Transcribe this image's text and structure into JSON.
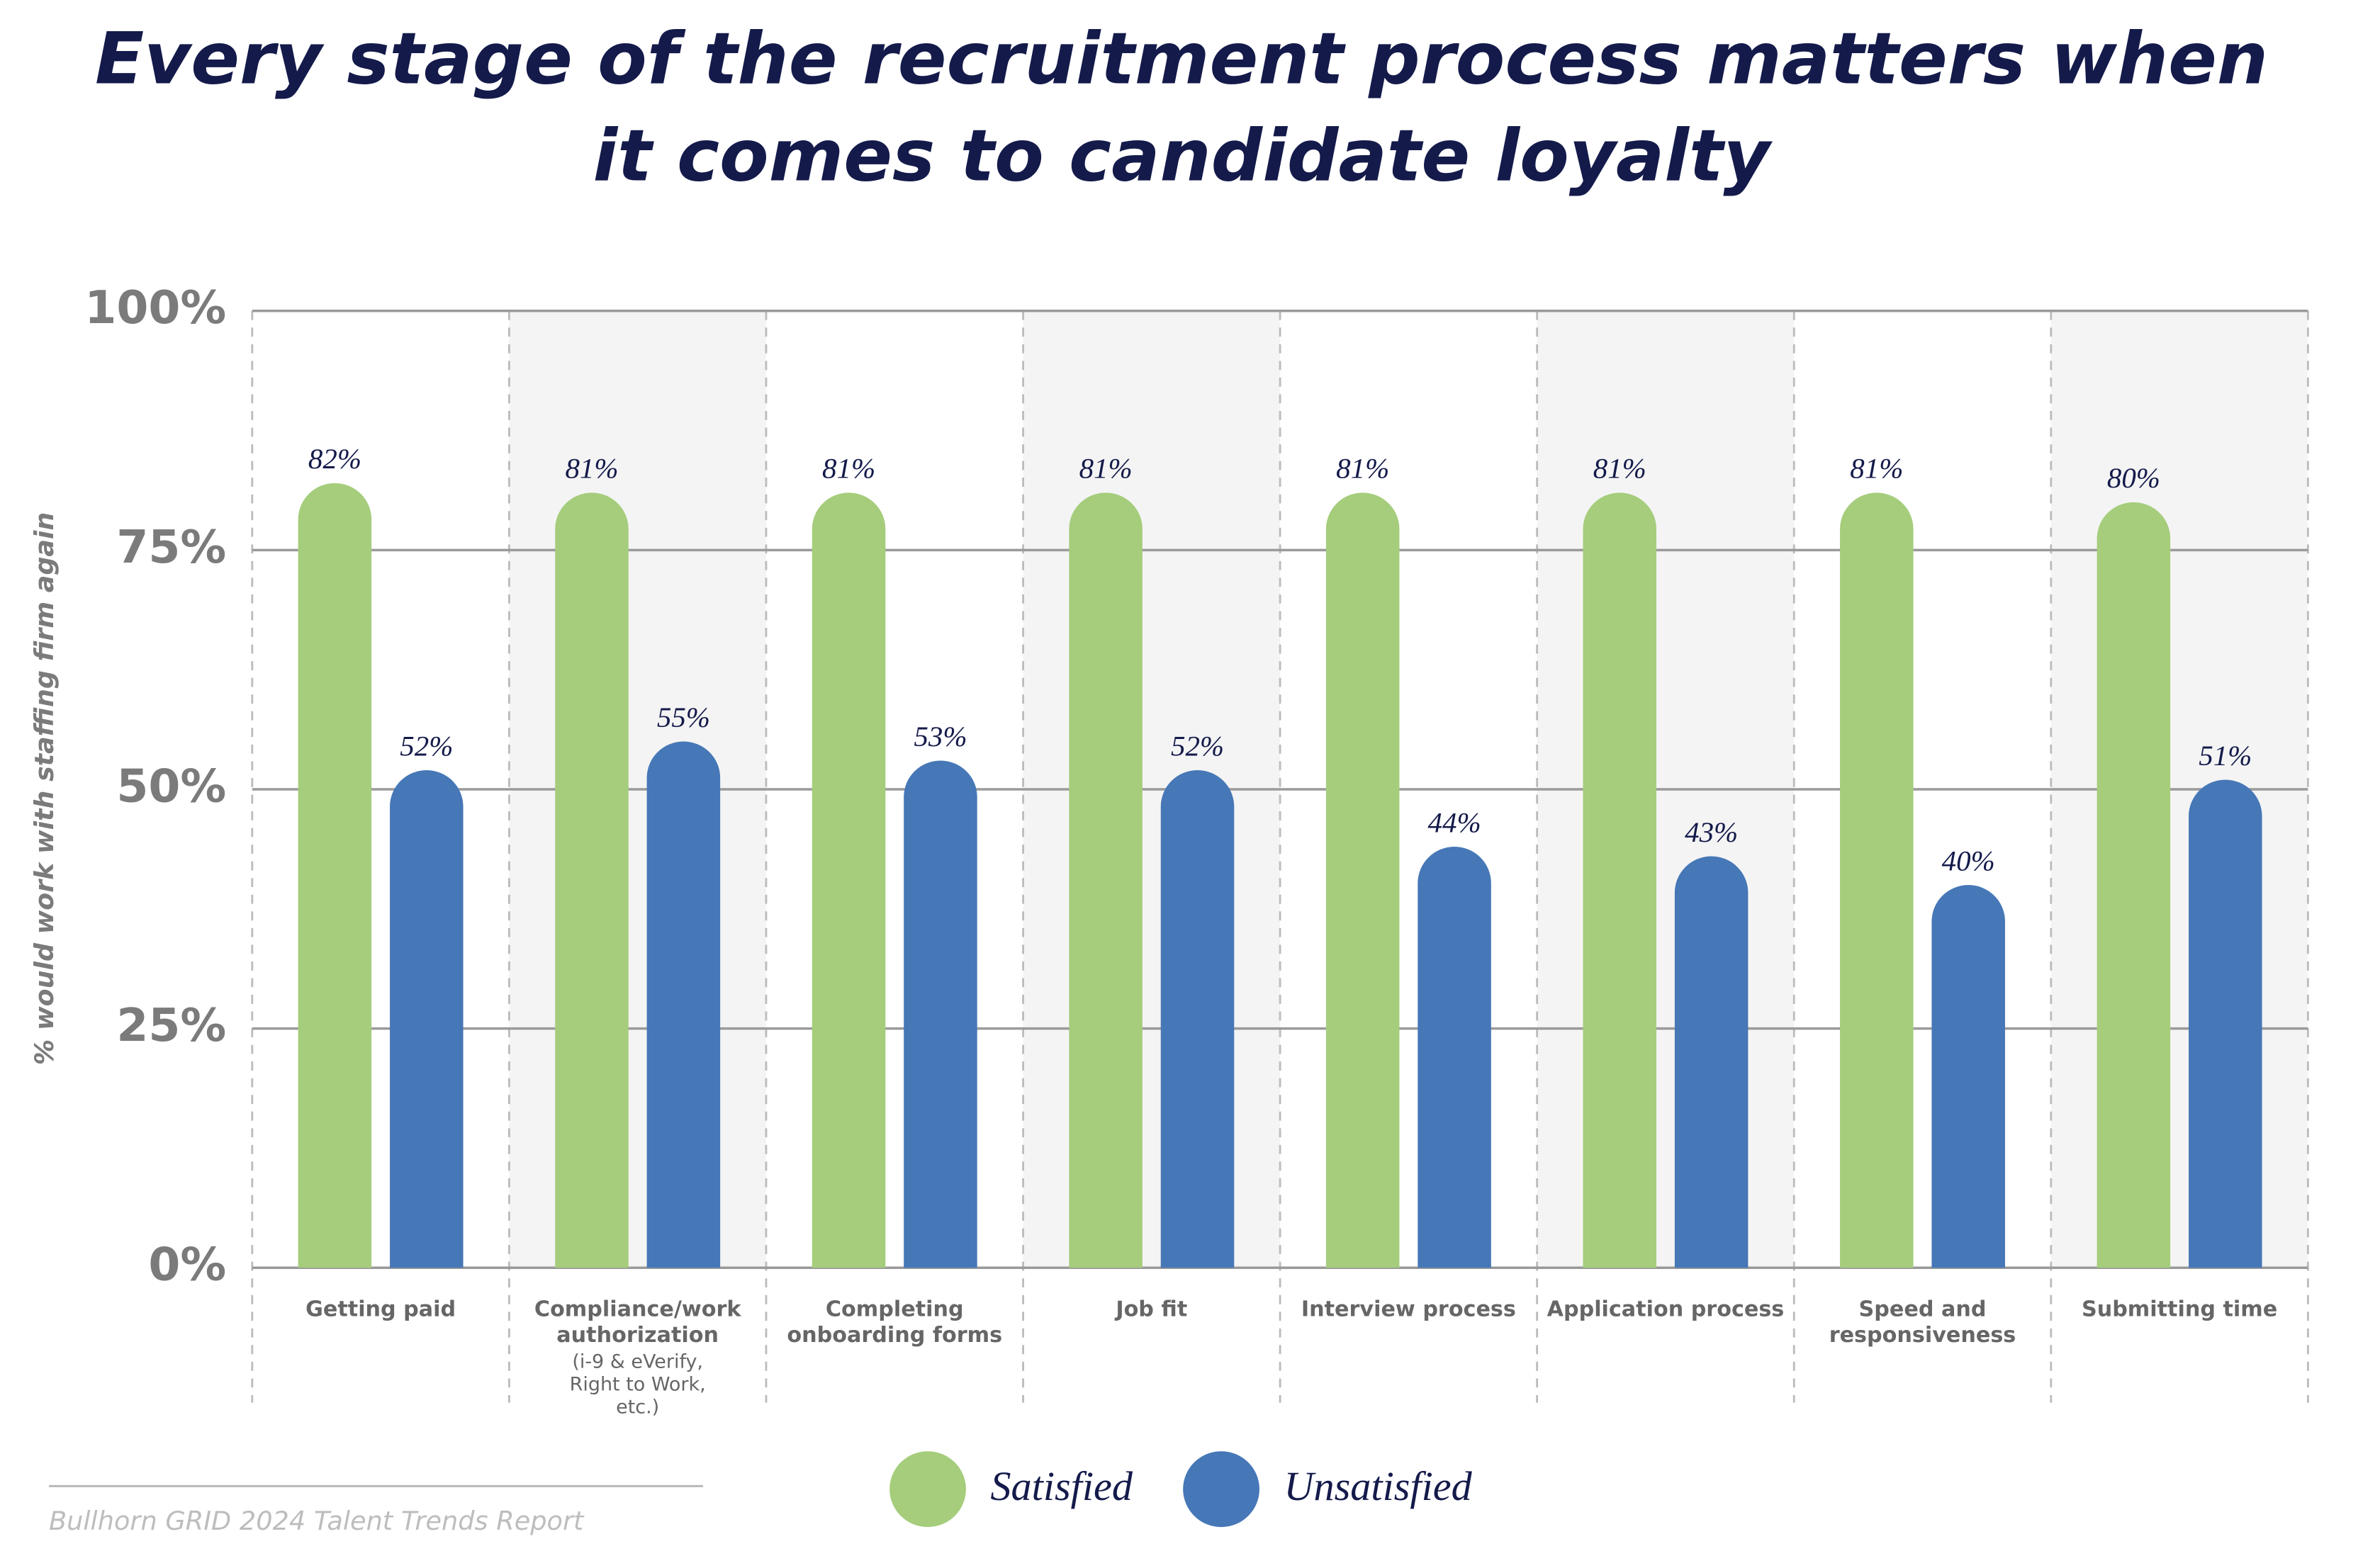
{
  "chart_data": {
    "type": "bar",
    "title": "Every stage of the recruitment process matters when it comes to candidate loyalty",
    "y_label": "% would work with staffing firm again",
    "categories": [
      "Getting paid",
      "Compliance/work authorization",
      "Completing onboarding forms",
      "Job fit",
      "Interview process",
      "Application process",
      "Speed and responsiveness",
      "Submitting time"
    ],
    "category_notes": [
      null,
      "(i-9 & eVerify, Right to Work, etc.)",
      null,
      null,
      null,
      null,
      null,
      null
    ],
    "series": [
      {
        "name": "Satisfied",
        "color": "#a5cd7c",
        "values": [
          82,
          81,
          81,
          81,
          81,
          81,
          81,
          80
        ],
        "value_labels": [
          "82%",
          "81%",
          "81%",
          "81%",
          "81%",
          "81%",
          "81%",
          "80%"
        ]
      },
      {
        "name": "Unsatisfied",
        "color": "#4677b7",
        "values": [
          52,
          55,
          53,
          52,
          44,
          43,
          40,
          51
        ],
        "value_labels": [
          "52%",
          "55%",
          "53%",
          "52%",
          "44%",
          "43%",
          "40%",
          "51%"
        ]
      }
    ],
    "ylim": [
      0,
      100
    ],
    "yticks": [
      {
        "value": 0,
        "label": "0%"
      },
      {
        "value": 25,
        "label": "25%"
      },
      {
        "value": 50,
        "label": "50%"
      },
      {
        "value": 75,
        "label": "75%"
      },
      {
        "value": 100,
        "label": "100%"
      }
    ],
    "grid": true,
    "source": "Bullhorn GRID 2024 Talent Trends Report"
  }
}
